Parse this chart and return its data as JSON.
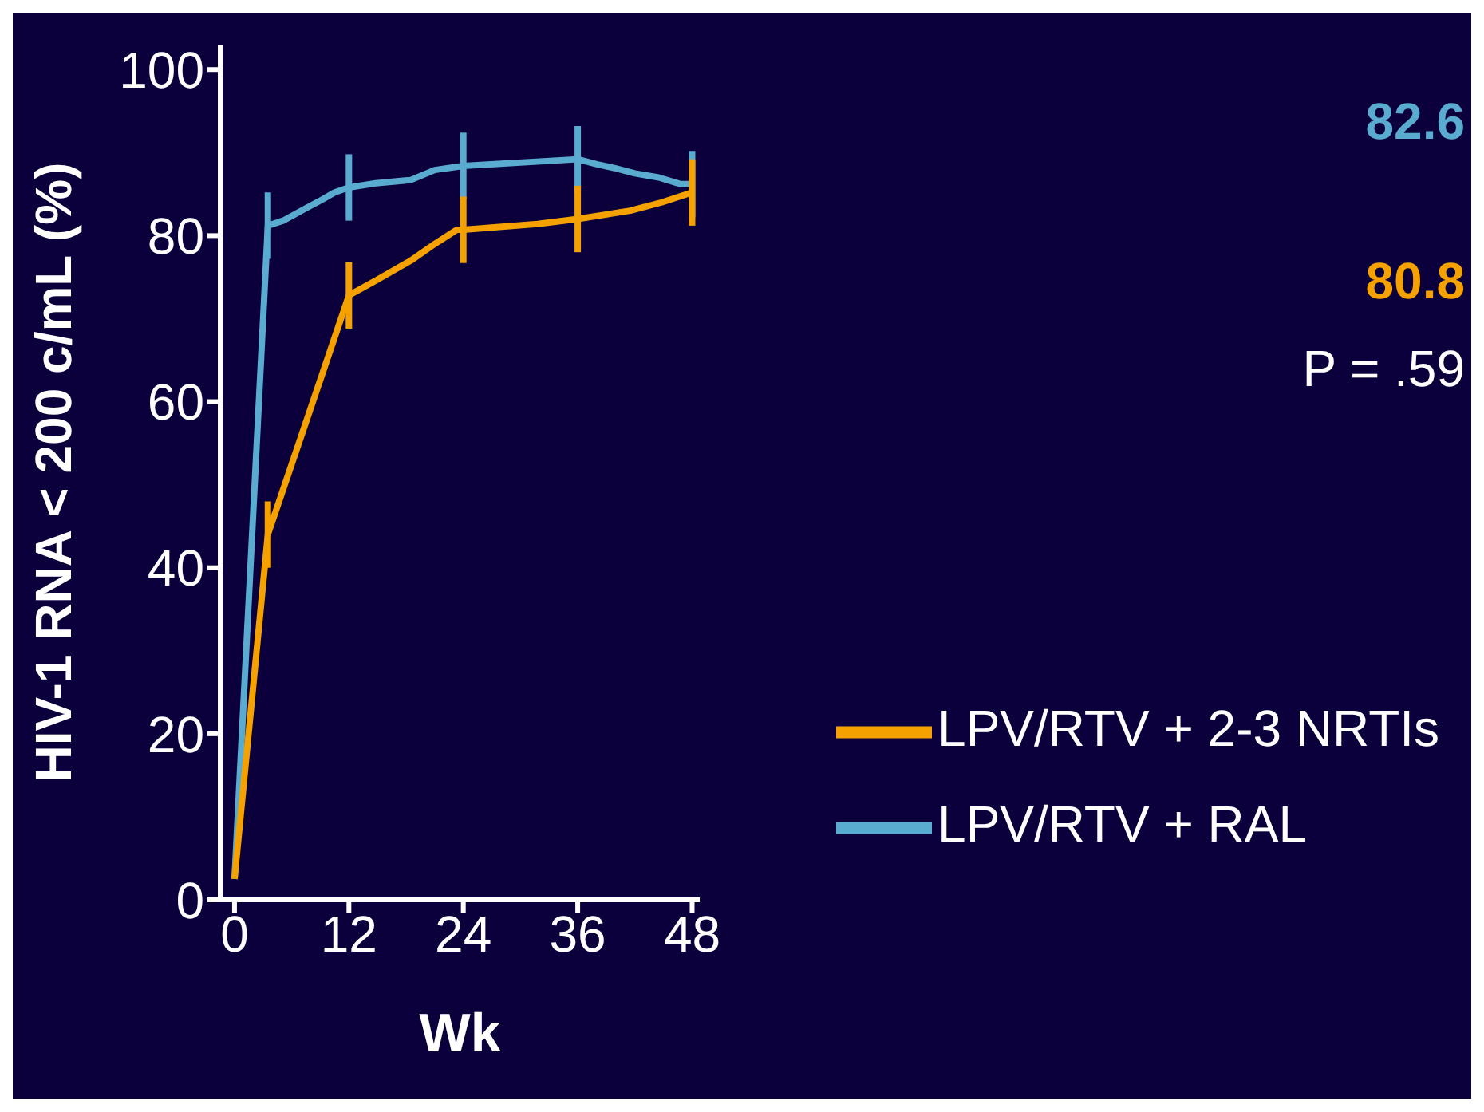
{
  "chart_data": {
    "type": "line",
    "xlabel": "Wk",
    "ylabel": "HIV-1 RNA < 200 c/mL (%)",
    "xlim": [
      -1.5,
      48.8
    ],
    "xticks": [
      0,
      12,
      24,
      36,
      48
    ],
    "ylim": [
      0,
      103
    ],
    "yticks": [
      0,
      20,
      40,
      60,
      80,
      100
    ],
    "grid": false,
    "legend": "bottom right",
    "marker": "none",
    "line_style": "solid",
    "annotations": [
      "82.6",
      "80.8",
      "P = .59"
    ],
    "series": [
      {
        "name": "LPV/RTV + RAL",
        "color": "#5aabd0",
        "x": [
          0,
          3.5,
          5.1,
          7.5,
          9.3,
          10.5,
          12,
          14.8,
          18.5,
          21,
          24,
          36,
          38,
          40,
          42,
          44.5,
          46.8,
          48
        ],
        "values": [
          2.5,
          81.2,
          81.8,
          83.3,
          84.4,
          85.2,
          85.8,
          86.3,
          86.7,
          87.9,
          88.4,
          89.2,
          88.6,
          88.1,
          87.5,
          87,
          86.2,
          86.2
        ],
        "errors": [
          null,
          4,
          null,
          null,
          null,
          null,
          4,
          null,
          null,
          null,
          4,
          4,
          null,
          null,
          null,
          null,
          null,
          4
        ]
      },
      {
        "name": "LPV/RTV + 2-3 NRTIs",
        "color": "#f5a200",
        "x": [
          0,
          3.5,
          12,
          15,
          18.5,
          21,
          23.3,
          24,
          31.8,
          36,
          41.5,
          44.8,
          48
        ],
        "values": [
          2.5,
          44,
          72.8,
          74.7,
          77,
          79,
          80.7,
          80.7,
          81.4,
          82,
          83,
          84,
          85.2
        ],
        "errors": [
          null,
          4,
          4,
          null,
          null,
          null,
          null,
          4,
          null,
          4,
          null,
          null,
          4
        ]
      }
    ]
  }
}
